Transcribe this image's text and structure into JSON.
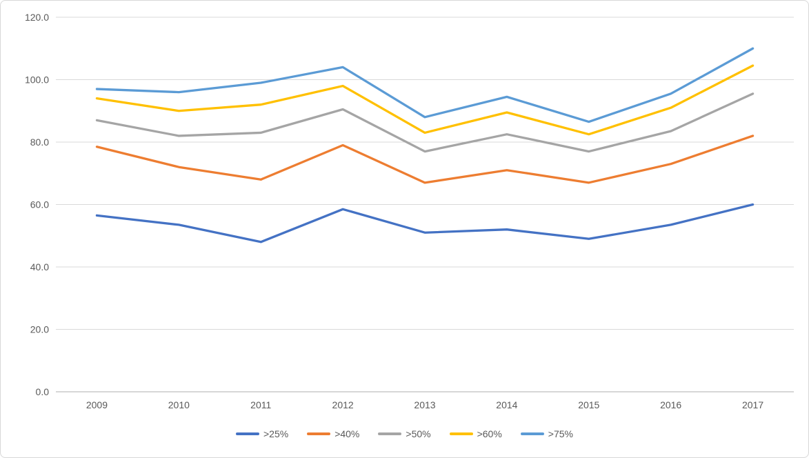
{
  "chart_data": {
    "type": "line",
    "categories": [
      "2009",
      "2010",
      "2011",
      "2012",
      "2013",
      "2014",
      "2015",
      "2016",
      "2017"
    ],
    "series": [
      {
        "name": ">25%",
        "color": "#4472C4",
        "values": [
          56.5,
          53.5,
          48,
          58.5,
          51,
          52,
          49,
          53.5,
          60
        ]
      },
      {
        "name": ">40%",
        "color": "#ED7D31",
        "values": [
          78.5,
          72,
          68,
          79,
          67,
          71,
          67,
          73,
          82
        ]
      },
      {
        "name": ">50%",
        "color": "#A5A5A5",
        "values": [
          87,
          82,
          83,
          90.5,
          77,
          82.5,
          77,
          83.5,
          95.5
        ]
      },
      {
        "name": ">60%",
        "color": "#FFC000",
        "values": [
          94,
          90,
          92,
          98,
          83,
          89.5,
          82.5,
          91,
          104.5
        ]
      },
      {
        "name": ">75%",
        "color": "#5B9BD5",
        "values": [
          97,
          96,
          99,
          104,
          88,
          94.5,
          86.5,
          95.5,
          110
        ]
      }
    ],
    "title": "",
    "xlabel": "",
    "ylabel": "",
    "ylim": [
      0,
      120
    ],
    "yticks": [
      0,
      20,
      40,
      60,
      80,
      100,
      120
    ],
    "ytick_labels": [
      "0.0",
      "20.0",
      "40.0",
      "60.0",
      "80.0",
      "100.0",
      "120.0"
    ],
    "grid": true,
    "legend_position": "bottom",
    "colors": {
      "gridline": "#D9D9D9",
      "axis_line": "#BFBFBF",
      "label_text": "#595959",
      "background": "#FFFFFF"
    }
  }
}
